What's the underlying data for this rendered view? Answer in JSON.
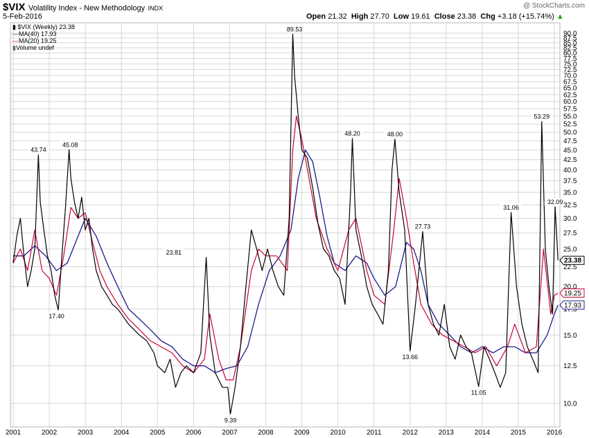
{
  "header": {
    "symbol": "$VIX",
    "name": "Volatility Index - New Methodology",
    "exchange": "INDX",
    "date": "5-Feb-2016",
    "watermark": "@ StockCharts.com",
    "open_label": "Open",
    "open": "21.32",
    "high_label": "High",
    "high": "27.70",
    "low_label": "Low",
    "low": "19.61",
    "close_label": "Close",
    "close": "23.38",
    "chg_label": "Chg",
    "chg": "+3.18 (+15.74%)"
  },
  "legend": {
    "items": [
      {
        "label": "$VIX (Weekly) 23.38",
        "color": "#000000"
      },
      {
        "label": "MA(40) 17.93",
        "color": "#1a1a8c"
      },
      {
        "label": "MA(20) 19.25",
        "color": "#cc0033"
      },
      {
        "label": "Volume undef",
        "color": "#666666"
      }
    ]
  },
  "chart_data": {
    "type": "line",
    "title": "$VIX Volatility Index - New Methodology INDX",
    "scale": "log",
    "ylim": [
      9.0,
      92.0
    ],
    "xlim": [
      2001.0,
      2016.15
    ],
    "y_ticks": [
      "90.0",
      "87.5",
      "85.0",
      "82.5",
      "80.0",
      "77.5",
      "75.0",
      "72.5",
      "70.0",
      "67.5",
      "65.0",
      "62.5",
      "60.0",
      "57.5",
      "55.0",
      "52.5",
      "50.0",
      "47.5",
      "45.0",
      "42.5",
      "40.0",
      "37.5",
      "35.0",
      "32.5",
      "30.0",
      "27.5",
      "25.0",
      "22.5",
      "20.0",
      "17.5",
      "15.0",
      "12.5",
      "10.0"
    ],
    "x_ticks": [
      "2001",
      "2002",
      "2003",
      "2004",
      "2005",
      "2006",
      "2007",
      "2008",
      "2009",
      "2010",
      "2011",
      "2012",
      "2013",
      "2014",
      "2015",
      "2016"
    ],
    "grid": true,
    "last_value_tags": [
      {
        "value": "23.38",
        "color": "#000000"
      },
      {
        "value": "19.25",
        "color": "#cc0033"
      },
      {
        "value": "17.93",
        "color": "#1a1a8c"
      }
    ],
    "annotations": [
      {
        "x": 2001.7,
        "y": 43.74,
        "label": "43.74"
      },
      {
        "x": 2002.58,
        "y": 45.08,
        "label": "45.08"
      },
      {
        "x": 2002.2,
        "y": 17.4,
        "label": "17.40"
      },
      {
        "x": 2005.45,
        "y": 23.81,
        "label": "23.81"
      },
      {
        "x": 2007.02,
        "y": 9.39,
        "label": "9.39"
      },
      {
        "x": 2008.8,
        "y": 89.53,
        "label": "89.53"
      },
      {
        "x": 2010.4,
        "y": 48.2,
        "label": "48.20"
      },
      {
        "x": 2011.58,
        "y": 48.0,
        "label": "48.00"
      },
      {
        "x": 2012.0,
        "y": 13.66,
        "label": "13.66"
      },
      {
        "x": 2012.35,
        "y": 27.73,
        "label": "27.73"
      },
      {
        "x": 2013.9,
        "y": 11.05,
        "label": "11.05"
      },
      {
        "x": 2014.8,
        "y": 31.06,
        "label": "31.06"
      },
      {
        "x": 2015.65,
        "y": 53.29,
        "label": "53.29"
      },
      {
        "x": 2016.02,
        "y": 32.09,
        "label": "32.09"
      }
    ],
    "series": [
      {
        "name": "$VIX (Weekly)",
        "color": "#000000",
        "x": [
          2001.0,
          2001.1,
          2001.2,
          2001.3,
          2001.4,
          2001.5,
          2001.6,
          2001.7,
          2001.75,
          2001.85,
          2001.95,
          2002.05,
          2002.15,
          2002.25,
          2002.35,
          2002.45,
          2002.55,
          2002.6,
          2002.7,
          2002.8,
          2002.9,
          2003.0,
          2003.1,
          2003.2,
          2003.3,
          2003.45,
          2003.6,
          2003.75,
          2003.9,
          2004.0,
          2004.2,
          2004.35,
          2004.5,
          2004.7,
          2004.9,
          2005.0,
          2005.2,
          2005.35,
          2005.5,
          2005.65,
          2005.8,
          2006.0,
          2006.2,
          2006.35,
          2006.45,
          2006.6,
          2006.8,
          2006.95,
          2007.02,
          2007.15,
          2007.3,
          2007.45,
          2007.6,
          2007.75,
          2007.9,
          2008.05,
          2008.2,
          2008.35,
          2008.5,
          2008.65,
          2008.75,
          2008.8,
          2008.9,
          2009.0,
          2009.15,
          2009.3,
          2009.45,
          2009.6,
          2009.75,
          2009.9,
          2010.05,
          2010.2,
          2010.35,
          2010.4,
          2010.5,
          2010.65,
          2010.8,
          2010.95,
          2011.1,
          2011.25,
          2011.4,
          2011.5,
          2011.58,
          2011.7,
          2011.85,
          2012.0,
          2012.15,
          2012.35,
          2012.5,
          2012.65,
          2012.8,
          2012.95,
          2013.1,
          2013.25,
          2013.4,
          2013.55,
          2013.7,
          2013.9,
          2014.05,
          2014.2,
          2014.35,
          2014.5,
          2014.65,
          2014.8,
          2014.95,
          2015.1,
          2015.25,
          2015.4,
          2015.55,
          2015.65,
          2015.75,
          2015.85,
          2015.95,
          2016.02,
          2016.1
        ],
        "values": [
          23,
          27,
          30,
          24,
          20,
          22,
          25,
          43.74,
          33,
          28,
          24,
          22,
          19,
          17.4,
          24,
          32,
          45.08,
          38,
          33,
          30,
          34,
          28,
          30,
          25,
          22,
          20,
          19,
          18,
          17.5,
          17,
          16,
          15.5,
          15,
          14.5,
          13.5,
          12.5,
          12,
          13,
          11,
          12,
          12.5,
          12,
          13.5,
          23.81,
          15,
          12,
          11,
          11,
          9.39,
          11,
          14,
          20,
          28,
          25,
          22,
          25,
          22,
          20,
          19,
          30,
          89.53,
          70,
          55,
          45,
          43,
          36,
          29,
          25,
          24,
          22,
          21,
          18,
          35,
          48.2,
          28,
          24,
          20,
          18,
          17,
          16,
          22,
          40,
          48,
          35,
          28,
          13.66,
          18,
          27.73,
          18,
          16,
          15,
          18,
          14,
          13,
          15,
          14,
          13.5,
          11.05,
          14,
          13,
          12,
          11,
          12,
          31.06,
          20,
          16,
          14,
          13,
          12,
          53.29,
          25,
          20,
          17,
          32.09,
          23.38
        ]
      },
      {
        "name": "MA(40)",
        "color": "#1a1a8c",
        "x": [
          2001.0,
          2001.3,
          2001.6,
          2001.9,
          2002.2,
          2002.5,
          2002.8,
          2003.0,
          2003.3,
          2003.6,
          2003.9,
          2004.2,
          2004.5,
          2004.8,
          2005.1,
          2005.4,
          2005.7,
          2006.0,
          2006.3,
          2006.6,
          2006.9,
          2007.2,
          2007.5,
          2007.8,
          2008.1,
          2008.4,
          2008.7,
          2008.9,
          2009.1,
          2009.3,
          2009.5,
          2009.7,
          2009.9,
          2010.2,
          2010.5,
          2010.8,
          2011.0,
          2011.3,
          2011.6,
          2011.9,
          2012.1,
          2012.3,
          2012.5,
          2012.8,
          2013.1,
          2013.4,
          2013.7,
          2014.0,
          2014.3,
          2014.6,
          2014.9,
          2015.2,
          2015.5,
          2015.8,
          2016.0,
          2016.1
        ],
        "values": [
          24,
          24,
          25.5,
          24,
          22,
          23,
          27,
          30,
          27,
          23,
          20,
          17.5,
          16.5,
          15.5,
          14.5,
          14,
          13,
          12.5,
          12.5,
          12,
          12.3,
          12.5,
          14,
          18,
          22,
          24,
          28,
          38,
          45,
          42,
          34,
          27,
          23,
          22,
          24,
          23,
          21,
          19,
          20,
          26,
          25,
          22,
          18,
          16,
          15,
          14,
          13.5,
          14,
          13.5,
          14,
          14,
          13.5,
          13.5,
          15,
          17,
          17.93
        ]
      },
      {
        "name": "MA(20)",
        "color": "#cc0033",
        "x": [
          2001.0,
          2001.2,
          2001.4,
          2001.6,
          2001.8,
          2002.0,
          2002.2,
          2002.4,
          2002.6,
          2002.8,
          2003.0,
          2003.2,
          2003.4,
          2003.6,
          2003.9,
          2004.2,
          2004.5,
          2004.8,
          2005.1,
          2005.4,
          2005.7,
          2006.0,
          2006.3,
          2006.45,
          2006.7,
          2006.9,
          2007.1,
          2007.3,
          2007.6,
          2007.8,
          2008.0,
          2008.3,
          2008.6,
          2008.75,
          2008.85,
          2009.0,
          2009.2,
          2009.4,
          2009.7,
          2010.0,
          2010.3,
          2010.5,
          2010.8,
          2011.0,
          2011.3,
          2011.55,
          2011.7,
          2011.9,
          2012.1,
          2012.3,
          2012.6,
          2012.9,
          2013.2,
          2013.5,
          2013.8,
          2014.1,
          2014.4,
          2014.7,
          2014.9,
          2015.2,
          2015.5,
          2015.7,
          2015.9,
          2016.0,
          2016.1
        ],
        "values": [
          23,
          25,
          22,
          28,
          22,
          21,
          19,
          24,
          32,
          30,
          31,
          26,
          22,
          20,
          18,
          16.5,
          15.5,
          14.5,
          14,
          13.5,
          12.5,
          12,
          13,
          17,
          13,
          11.5,
          11.5,
          14,
          22,
          25,
          24,
          24,
          22,
          45,
          55,
          48,
          38,
          30,
          25,
          22,
          28,
          30,
          22,
          19,
          18,
          28,
          38,
          30,
          23,
          18,
          16,
          15,
          14.5,
          14,
          13.5,
          14,
          12.5,
          14,
          16,
          13.5,
          14,
          25,
          17,
          19,
          19.25
        ]
      }
    ]
  }
}
